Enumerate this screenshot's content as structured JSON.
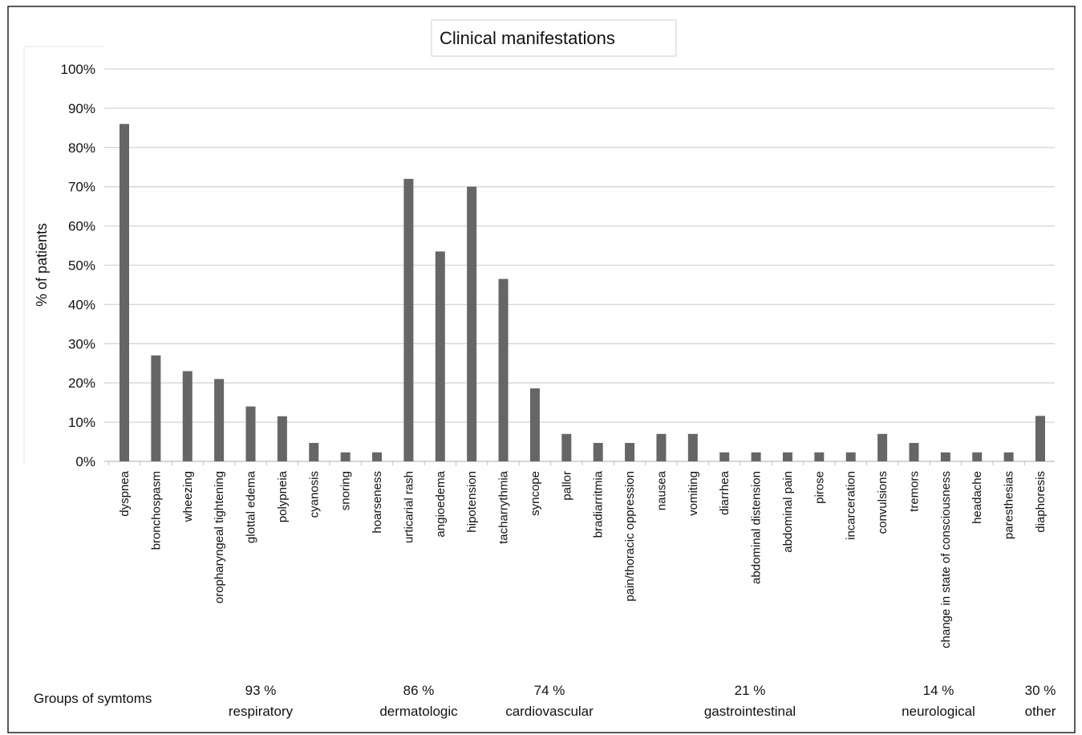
{
  "chart_data": {
    "type": "bar",
    "title": "Clinical manifestations",
    "xlabel": "",
    "ylabel": "% of patients",
    "ylim": [
      0,
      100
    ],
    "yticks": [
      "0%",
      "10%",
      "20%",
      "30%",
      "40%",
      "50%",
      "60%",
      "70%",
      "80%",
      "90%",
      "100%"
    ],
    "grid": true,
    "bar_color": "#666666",
    "categories": [
      "dyspnea",
      "bronchospasm",
      "wheezing",
      "oropharyngeal tightening",
      "glottal edema",
      "polypneia",
      "cyanosis",
      "snoring",
      "hoarseness",
      "urticarial rash",
      "angioedema",
      "hipotension",
      "tacharrythmia",
      "syncope",
      "pallor",
      "bradiarritmia",
      "pain/thoracic oppression",
      "nausea",
      "vomiting",
      "diarrhea",
      "abdominal distension",
      "abdominal pain",
      "pirose",
      "incarceration",
      "convulsions",
      "tremors",
      "change in state of consciousness",
      "headache",
      "paresthesias",
      "diaphoresis"
    ],
    "values": [
      86,
      27,
      23,
      21,
      14,
      11.5,
      4.7,
      2.3,
      2.3,
      72,
      53.5,
      70,
      46.5,
      18.6,
      7,
      4.7,
      4.7,
      7,
      7,
      2.3,
      2.3,
      2.3,
      2.3,
      2.3,
      7,
      4.7,
      2.3,
      2.3,
      2.3,
      11.6
    ],
    "groups_label": "Groups of symtoms",
    "groups": [
      {
        "percent": "93 %",
        "name": "respiratory"
      },
      {
        "percent": "86 %",
        "name": "dermatologic"
      },
      {
        "percent": "74 %",
        "name": "cardiovascular"
      },
      {
        "percent": "21 %",
        "name": "gastrointestinal"
      },
      {
        "percent": "14 %",
        "name": "neurological"
      },
      {
        "percent": "30 %",
        "name": "other"
      }
    ]
  }
}
